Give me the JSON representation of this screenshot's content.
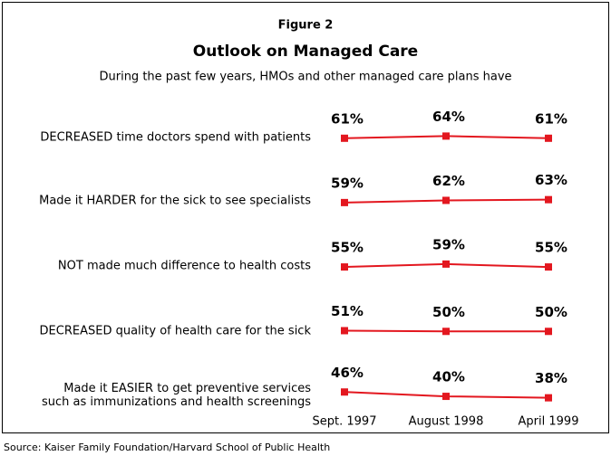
{
  "chart_data": {
    "type": "line",
    "label": "Figure 2",
    "title": "Outlook on Managed Care",
    "subtitle": "During the past few years, HMOs and other managed care plans have",
    "categories": [
      "Sept. 1997",
      "August 1998",
      "April 1999"
    ],
    "color": "#e3171f",
    "series": [
      {
        "name": "DECREASED time doctors spend with patients",
        "values": [
          61,
          64,
          61
        ],
        "value_labels": [
          "61%",
          "64%",
          "61%"
        ]
      },
      {
        "name": "Made it HARDER for the sick to see specialists",
        "values": [
          59,
          62,
          63
        ],
        "value_labels": [
          "59%",
          "62%",
          "63%"
        ]
      },
      {
        "name": "NOT made much difference to health costs",
        "values": [
          55,
          59,
          55
        ],
        "value_labels": [
          "55%",
          "59%",
          "55%"
        ]
      },
      {
        "name": "DECREASED quality of health care for the sick",
        "values": [
          51,
          50,
          50
        ],
        "value_labels": [
          "51%",
          "50%",
          "50%"
        ]
      },
      {
        "name": "Made it EASIER to get preventive services\nsuch as immunizations and health screenings",
        "values": [
          46,
          40,
          38
        ],
        "value_labels": [
          "46%",
          "40%",
          "38%"
        ]
      }
    ],
    "source": "Source: Kaiser Family Foundation/Harvard School of Public Health"
  }
}
